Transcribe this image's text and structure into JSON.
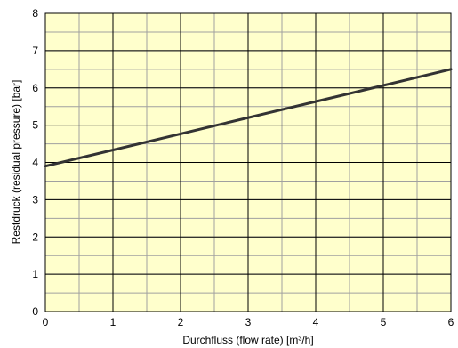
{
  "chart_data": {
    "type": "line",
    "xlabel": "Durchfluss (flow rate) [m³/h]",
    "ylabel": "Restdruck (residual pressure) [bar]",
    "xlim": [
      0,
      6
    ],
    "ylim": [
      0,
      8
    ],
    "x_ticks": [
      0,
      1,
      2,
      3,
      4,
      5,
      6
    ],
    "y_ticks": [
      0,
      1,
      2,
      3,
      4,
      5,
      6,
      7,
      8
    ],
    "x_minor_step": 0.5,
    "y_minor_step": 0.5,
    "grid": true,
    "series": [
      {
        "x": [
          0,
          6
        ],
        "y": [
          3.9,
          6.5
        ]
      }
    ],
    "colors": {
      "plot_background": "#FFFFCC",
      "major_grid": "#000000",
      "minor_grid": "#A0A0A0",
      "line": "#333333"
    }
  }
}
